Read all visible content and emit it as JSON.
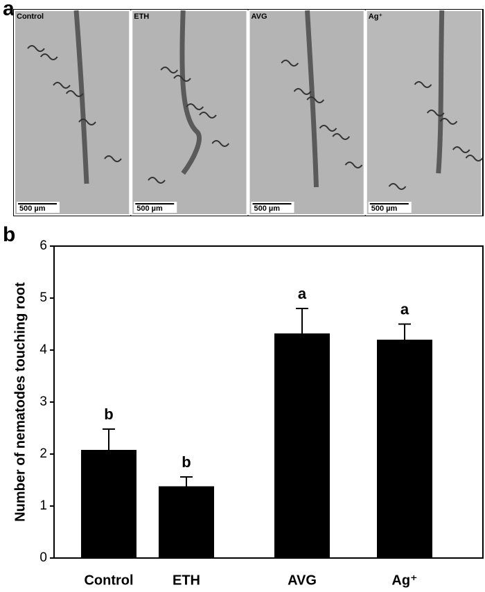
{
  "figure_a": {
    "label": "a",
    "images": [
      {
        "label": "Control",
        "scale": "500 µm"
      },
      {
        "label": "ETH",
        "scale": "500 µm"
      },
      {
        "label": "AVG",
        "scale": "500 µm"
      },
      {
        "label": "Ag⁺",
        "scale": "500 µm"
      }
    ]
  },
  "panel_b_label": "b",
  "chart_data": {
    "type": "bar",
    "ylabel": "Number of nematodes touching root",
    "categories": [
      "Control",
      "ETH",
      "AVG",
      "Ag⁺"
    ],
    "values": [
      2.08,
      1.38,
      4.32,
      4.2
    ],
    "errors": [
      0.4,
      0.18,
      0.48,
      0.3
    ],
    "annotations": [
      "b",
      "b",
      "a",
      "a"
    ],
    "color": "#000000",
    "ylim": [
      0,
      6
    ],
    "yticks": [
      0,
      1,
      2,
      3,
      4,
      5,
      6
    ],
    "grid": false
  }
}
